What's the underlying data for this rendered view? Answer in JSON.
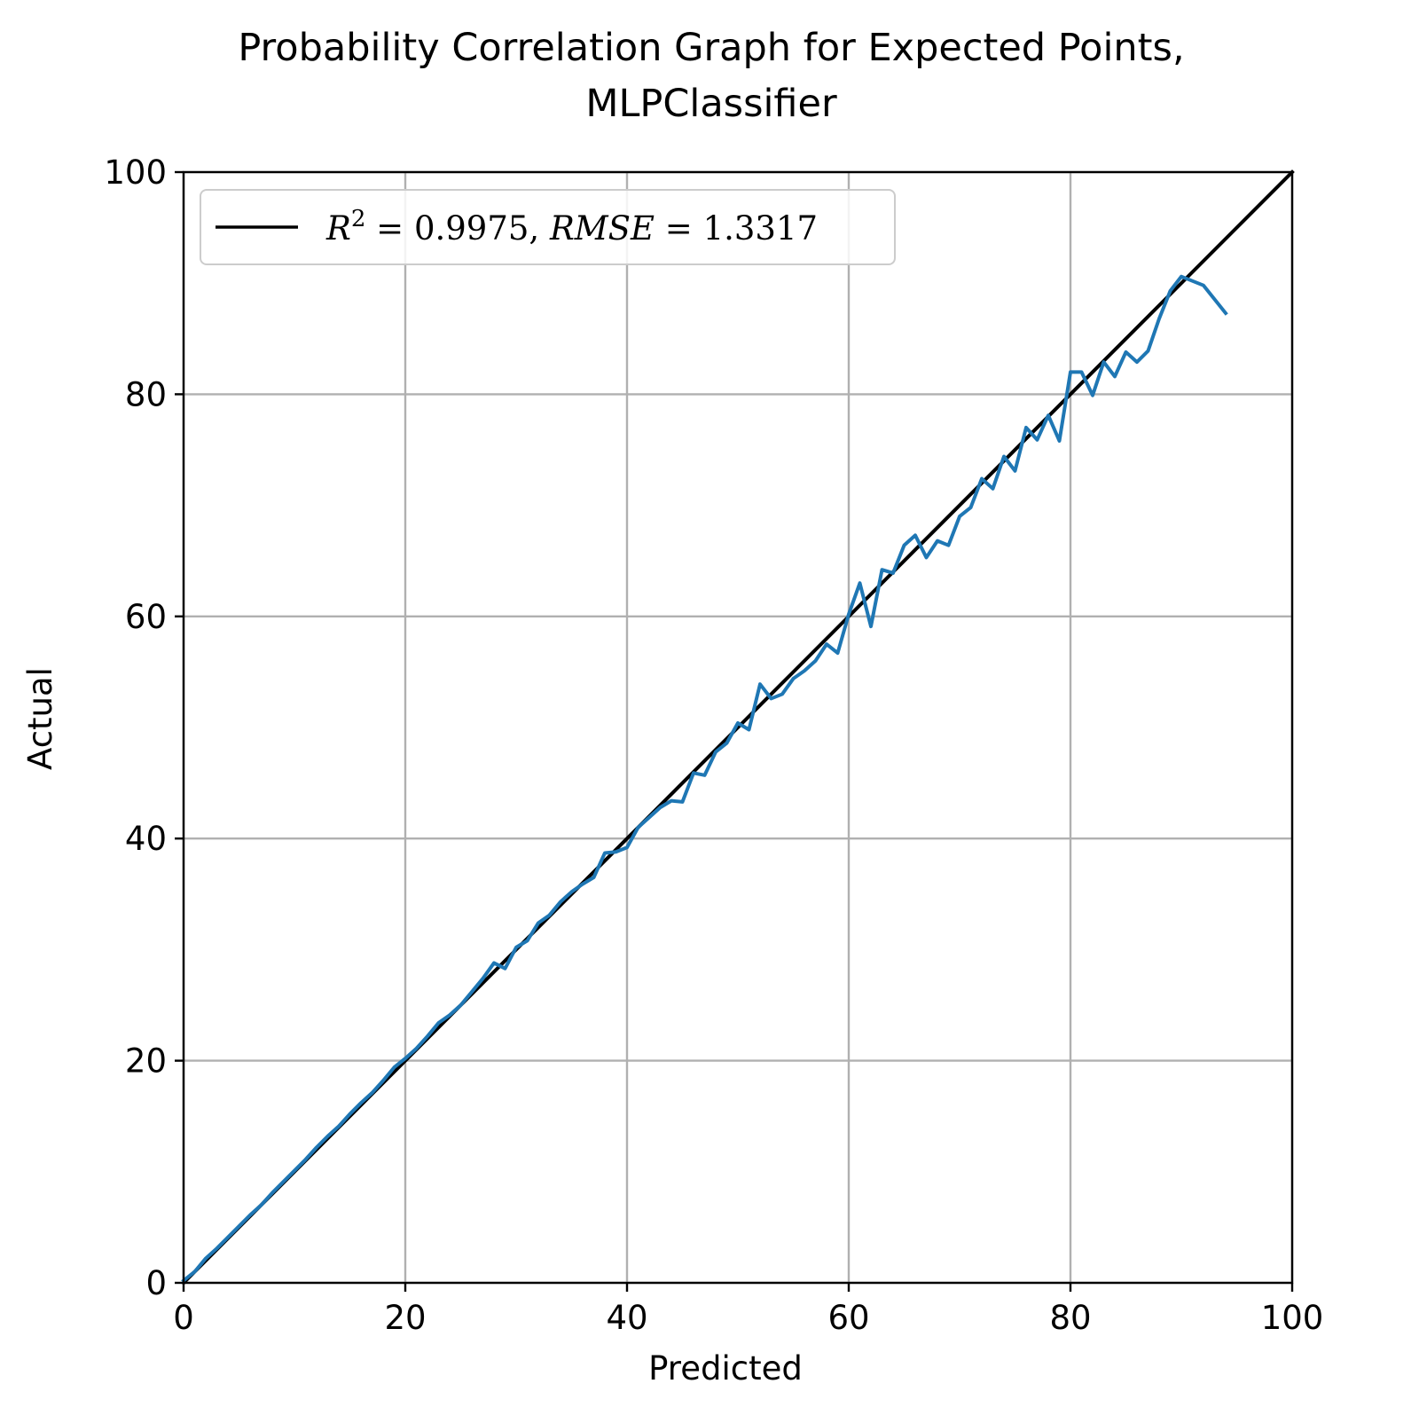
{
  "chart_data": {
    "type": "line",
    "title_lines": [
      "Probability Correlation Graph for Expected Points,",
      "MLPClassifier"
    ],
    "xlabel": "Predicted",
    "ylabel": "Actual",
    "xlim": [
      0,
      100
    ],
    "ylim": [
      0,
      100
    ],
    "xticks": [
      0,
      20,
      40,
      60,
      80,
      100
    ],
    "yticks": [
      0,
      20,
      40,
      60,
      80,
      100
    ],
    "grid": true,
    "legend": {
      "placement": "top-left",
      "entries": [
        {
          "label": "R² = 0.9975, RMSE = 1.3317",
          "label_parts": {
            "r_label": "R",
            "r_exp": "2",
            "eq1": " = ",
            "r_value": "0.9975, ",
            "rmse_label": "RMSE",
            "eq2": " = ",
            "rmse_value": "1.3317"
          },
          "color": "#000000"
        }
      ]
    },
    "series": [
      {
        "name": "R² = 0.9975, RMSE = 1.3317",
        "color": "#000000",
        "x": [
          0,
          100
        ],
        "y": [
          0,
          100
        ]
      },
      {
        "color": "#1f77b4",
        "x": [
          0,
          1,
          2,
          3,
          4,
          5,
          6,
          7,
          8,
          9,
          10,
          11,
          12,
          13,
          14,
          15,
          16,
          17,
          18,
          19,
          20,
          21,
          22,
          23,
          24,
          25,
          26,
          27,
          28,
          29,
          30,
          31,
          32,
          33,
          34,
          35,
          36,
          37,
          38,
          39,
          40,
          41,
          42,
          43,
          44,
          45,
          46,
          47,
          48,
          49,
          50,
          51,
          52,
          53,
          54,
          55,
          56,
          57,
          58,
          59,
          60,
          61,
          62,
          63,
          64,
          65,
          66,
          67,
          68,
          69,
          70,
          71,
          72,
          73,
          74,
          75,
          76,
          77,
          78,
          79,
          80,
          81,
          82,
          83,
          84,
          85,
          86,
          87,
          88,
          89,
          90,
          92,
          94
        ],
        "y": [
          0.2,
          1.0,
          2.2,
          3.1,
          4.1,
          5.1,
          6.1,
          7.0,
          8.1,
          9.1,
          10.1,
          11.1,
          12.2,
          13.2,
          14.1,
          15.2,
          16.2,
          17.1,
          18.2,
          19.4,
          20.2,
          21.1,
          22.2,
          23.4,
          24.1,
          25.0,
          26.2,
          27.4,
          28.8,
          28.3,
          30.2,
          30.8,
          32.4,
          33.1,
          34.3,
          35.2,
          35.9,
          36.5,
          38.7,
          38.8,
          39.2,
          41.0,
          41.9,
          42.8,
          43.4,
          43.3,
          45.9,
          45.7,
          47.8,
          48.6,
          50.4,
          49.8,
          53.9,
          52.6,
          53.0,
          54.4,
          55.1,
          56.0,
          57.5,
          56.7,
          60.2,
          63.0,
          59.1,
          64.2,
          63.9,
          66.4,
          67.3,
          65.3,
          66.8,
          66.4,
          69.0,
          69.8,
          72.4,
          71.5,
          74.4,
          73.1,
          77.0,
          75.9,
          78.1,
          75.8,
          82.0,
          82.0,
          79.9,
          82.9,
          81.6,
          83.8,
          82.9,
          83.9,
          86.8,
          89.3,
          90.6,
          89.8,
          87.3
        ]
      }
    ]
  }
}
